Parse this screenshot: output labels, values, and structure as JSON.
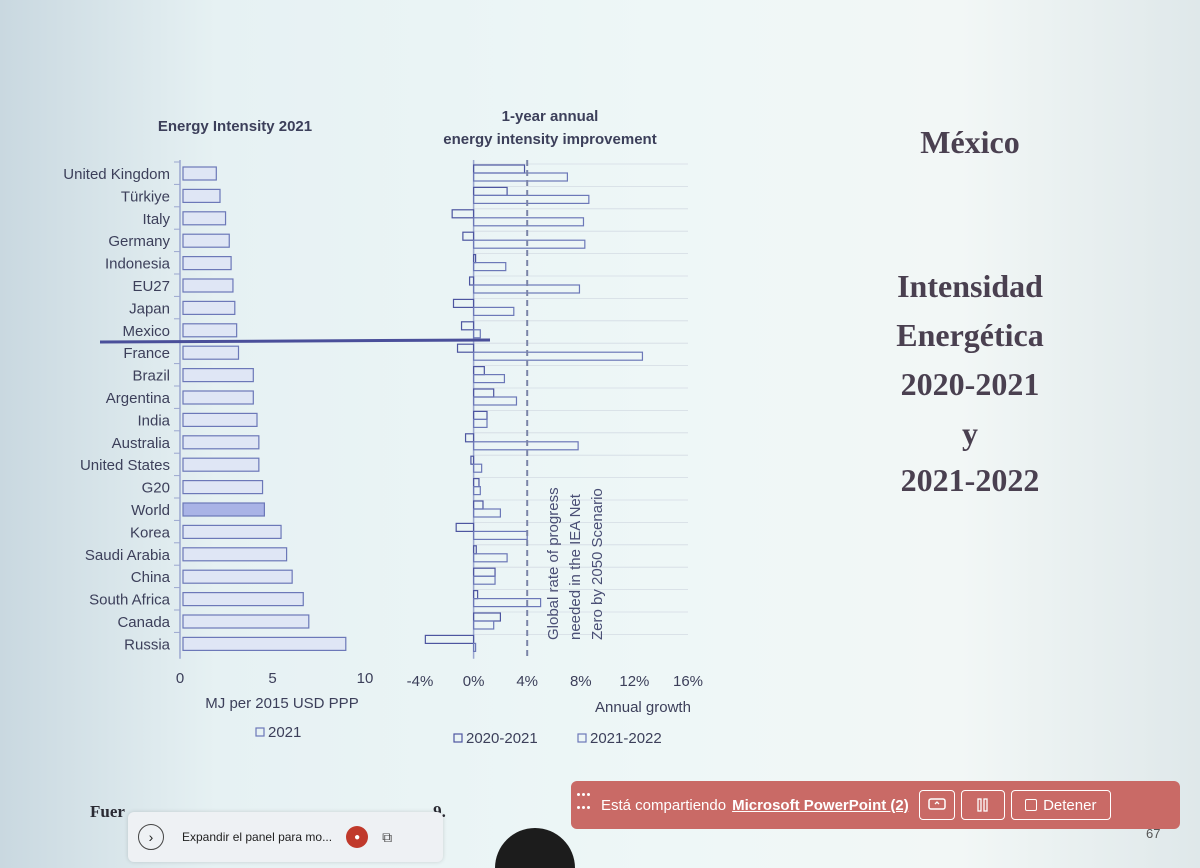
{
  "left_chart": {
    "title": "Energy Intensity 2021",
    "xlabel": "MJ per 2015 USD PPP",
    "legend": "2021",
    "ticks": [
      "0",
      "5",
      "10"
    ]
  },
  "right_chart": {
    "title_line1": "1-year annual",
    "title_line2": "energy intensity improvement",
    "xlabel": "Annual growth",
    "ticks": [
      "-4%",
      "0%",
      "4%",
      "8%",
      "12%",
      "16%"
    ],
    "legend_a": "2020-2021",
    "legend_b": "2021-2022",
    "annotation_line1": "Global rate of progress",
    "annotation_line2": "needed in the IEA Net",
    "annotation_line3": "Zero by 2050 Scenario"
  },
  "chart_data": [
    {
      "type": "bar",
      "title": "Energy Intensity 2021",
      "xlabel": "MJ per 2015 USD PPP",
      "orientation": "horizontal",
      "xlim": [
        0,
        10
      ],
      "categories": [
        "United Kingdom",
        "Türkiye",
        "Italy",
        "Germany",
        "Indonesia",
        "EU27",
        "Japan",
        "Mexico",
        "France",
        "Brazil",
        "Argentina",
        "India",
        "Australia",
        "United States",
        "G20",
        "World",
        "Korea",
        "Saudi Arabia",
        "China",
        "South Africa",
        "Canada",
        "Russia"
      ],
      "series": [
        {
          "name": "2021",
          "values": [
            1.8,
            2.0,
            2.3,
            2.5,
            2.6,
            2.7,
            2.8,
            2.9,
            3.0,
            3.8,
            3.8,
            4.0,
            4.1,
            4.1,
            4.3,
            4.4,
            5.3,
            5.6,
            5.9,
            6.5,
            6.8,
            8.8
          ]
        }
      ]
    },
    {
      "type": "bar",
      "title": "1-year annual energy intensity improvement",
      "xlabel": "Annual growth",
      "orientation": "horizontal",
      "xlim": [
        -4,
        16
      ],
      "unit": "%",
      "reference_line": 4,
      "categories": [
        "United Kingdom",
        "Türkiye",
        "Italy",
        "Germany",
        "Indonesia",
        "EU27",
        "Japan",
        "Mexico",
        "France",
        "Brazil",
        "Argentina",
        "India",
        "Australia",
        "United States",
        "G20",
        "World",
        "Korea",
        "Saudi Arabia",
        "China",
        "South Africa",
        "Canada",
        "Russia"
      ],
      "series": [
        {
          "name": "2020-2021",
          "values": [
            3.8,
            2.5,
            -1.6,
            -0.8,
            0.0,
            -0.3,
            -1.5,
            -0.9,
            -1.2,
            0.8,
            1.5,
            1.0,
            -0.6,
            -0.2,
            0.4,
            0.7,
            -1.3,
            0.2,
            1.6,
            0.3,
            2.0,
            -3.6
          ]
        },
        {
          "name": "2021-2022",
          "values": [
            7.0,
            8.6,
            8.2,
            8.3,
            2.4,
            7.9,
            3.0,
            0.5,
            12.6,
            2.3,
            3.2,
            1.0,
            7.8,
            0.6,
            0.5,
            2.0,
            4.0,
            2.5,
            1.6,
            5.0,
            1.5,
            0.0
          ]
        }
      ]
    }
  ],
  "slide": {
    "title": "México",
    "subtitle_line1": "Intensidad",
    "subtitle_line2": "Energética",
    "subtitle_line3": "2020-2021",
    "subtitle_line4": "y",
    "subtitle_line5": "2021-2022",
    "source": "Fuer",
    "source_tail": "9.",
    "page_number": "67"
  },
  "sharing_bar": {
    "text": "Está compartiendo",
    "app": "Microsoft PowerPoint (2)",
    "stop_label": "Detener",
    "color": "#c96a66"
  },
  "taskbar": {
    "expand_label": "Expandir el panel para mo..."
  }
}
